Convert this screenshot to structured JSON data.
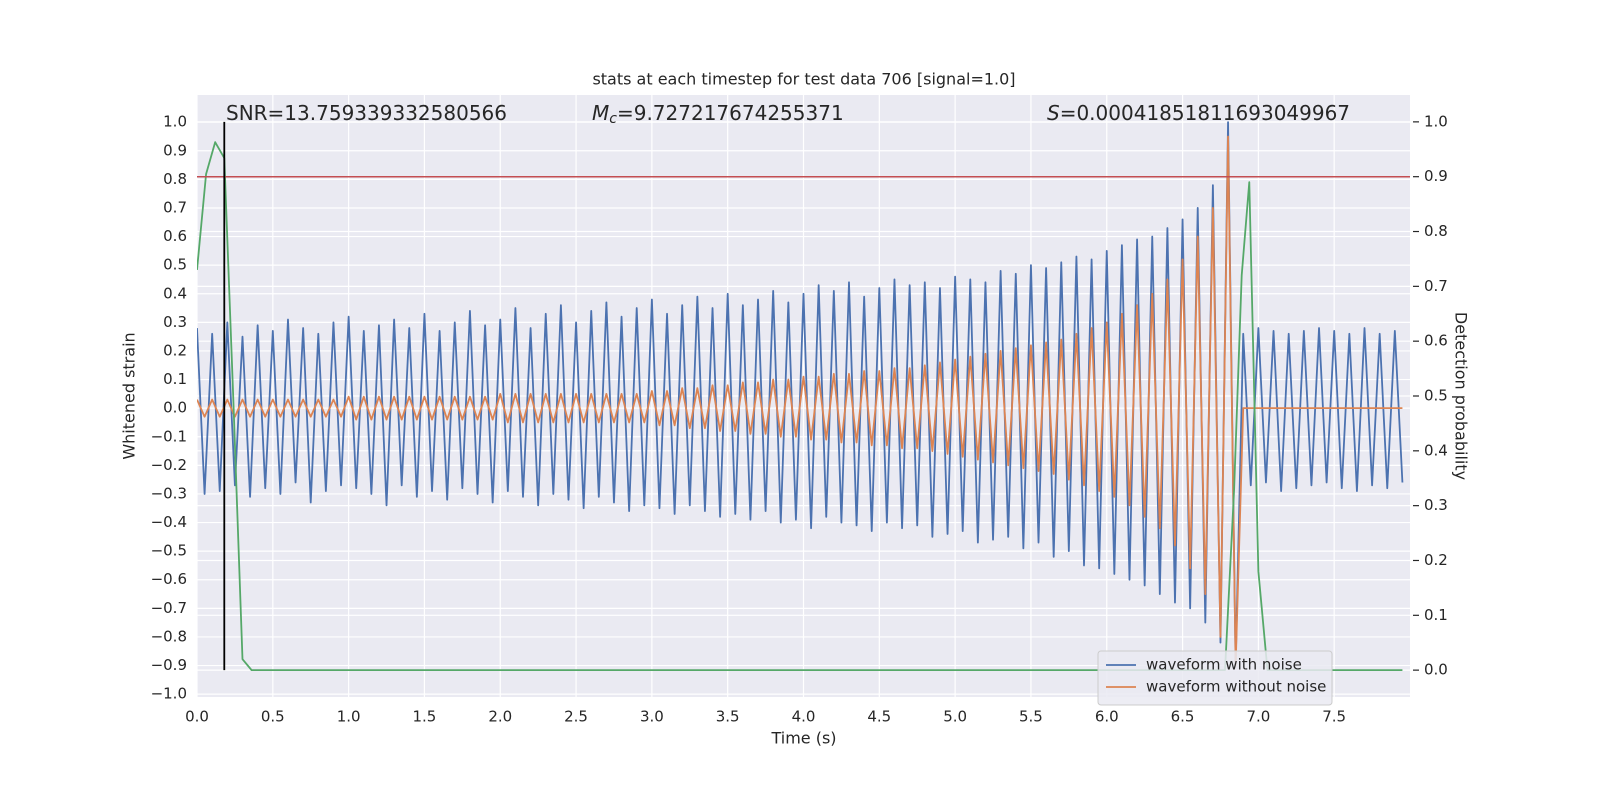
{
  "chart_data": {
    "type": "line",
    "title": "stats at each timestep for test data 706 [signal=1.0]",
    "x_label": "Time (s)",
    "y_label": "Whitened strain",
    "y2_label": "Detection probability",
    "xlim": [
      0,
      8.0
    ],
    "ylim": [
      -1.01,
      1.095
    ],
    "y2lim": [
      -0.049,
      1.049
    ],
    "grid": true,
    "legend": "lower right",
    "xticks": [
      {
        "value": 0,
        "label": "0.0"
      },
      0.5,
      {
        "value": 1,
        "label": "1.0"
      },
      1.5,
      {
        "value": 2,
        "label": "2.0"
      },
      2.5,
      {
        "value": 3,
        "label": "3.0"
      },
      3.5,
      {
        "value": 4,
        "label": "4.0"
      },
      4.5,
      {
        "value": 5,
        "label": "5.0"
      },
      5.5,
      {
        "value": 6,
        "label": "6.0"
      },
      6.5,
      {
        "value": 7,
        "label": "7.0"
      },
      7.5
    ],
    "yticks": [
      {
        "value": -1,
        "label": "−1.0"
      },
      {
        "value": -0.9,
        "label": "−0.9"
      },
      {
        "value": -0.8,
        "label": "−0.8"
      },
      {
        "value": -0.7,
        "label": "−0.7"
      },
      {
        "value": -0.6,
        "label": "−0.6"
      },
      {
        "value": -0.5,
        "label": "−0.5"
      },
      {
        "value": -0.4,
        "label": "−0.4"
      },
      {
        "value": -0.3,
        "label": "−0.3"
      },
      {
        "value": -0.2,
        "label": "−0.2"
      },
      {
        "value": -0.1,
        "label": "−0.1"
      },
      {
        "value": 0,
        "label": "0.0"
      },
      0.1,
      0.2,
      0.3,
      0.4,
      0.5,
      0.6,
      0.7,
      0.8,
      0.9,
      {
        "value": 1,
        "label": "1.0"
      }
    ],
    "y2ticks": [
      {
        "value": 0,
        "label": "0.0"
      },
      0.1,
      0.2,
      0.3,
      0.4,
      0.5,
      0.6,
      0.7,
      0.8,
      0.9,
      {
        "value": 1,
        "label": "1.0"
      }
    ],
    "annotations": [
      {
        "text": "SNR=13.759339332580566"
      },
      {
        "symbol": "M",
        "subscript": "c",
        "text": "=9.727217674255371"
      },
      {
        "symbol": "S",
        "text": "=0.00041851811693049967"
      }
    ],
    "x": [
      0,
      0.05,
      0.1,
      0.15,
      0.2,
      0.25,
      0.3,
      0.35,
      0.4,
      0.45,
      0.5,
      0.55,
      0.6,
      0.65,
      0.7,
      0.75,
      0.8,
      0.85,
      0.9,
      0.95,
      1,
      1.05,
      1.1,
      1.15,
      1.2,
      1.25,
      1.3,
      1.35,
      1.4,
      1.45,
      1.5,
      1.55,
      1.6,
      1.65,
      1.7,
      1.75,
      1.8,
      1.85,
      1.9,
      1.95,
      2,
      2.05,
      2.1,
      2.15,
      2.2,
      2.25,
      2.3,
      2.35,
      2.4,
      2.45,
      2.5,
      2.55,
      2.6,
      2.65,
      2.7,
      2.75,
      2.8,
      2.85,
      2.9,
      2.95,
      3,
      3.05,
      3.1,
      3.15,
      3.2,
      3.25,
      3.3,
      3.35,
      3.4,
      3.45,
      3.5,
      3.55,
      3.6,
      3.65,
      3.7,
      3.75,
      3.8,
      3.85,
      3.9,
      3.95,
      4,
      4.05,
      4.1,
      4.15,
      4.2,
      4.25,
      4.3,
      4.35,
      4.4,
      4.45,
      4.5,
      4.55,
      4.6,
      4.65,
      4.7,
      4.75,
      4.8,
      4.85,
      4.9,
      4.95,
      5,
      5.05,
      5.1,
      5.15,
      5.2,
      5.25,
      5.3,
      5.35,
      5.4,
      5.45,
      5.5,
      5.55,
      5.6,
      5.65,
      5.7,
      5.75,
      5.8,
      5.85,
      5.9,
      5.95,
      6,
      6.05,
      6.1,
      6.15,
      6.2,
      6.25,
      6.3,
      6.35,
      6.4,
      6.45,
      6.5,
      6.55,
      6.6,
      6.65,
      6.7,
      6.75,
      6.8,
      6.85,
      6.9,
      6.95,
      7,
      7.05,
      7.1,
      7.15,
      7.2,
      7.25,
      7.3,
      7.35,
      7.4,
      7.45,
      7.5,
      7.55,
      7.6,
      7.65,
      7.7,
      7.75,
      7.8,
      7.85,
      7.9,
      7.95
    ],
    "series": [
      {
        "name": "waveform with noise",
        "color": "#4c72b0",
        "values": [
          0.28,
          -0.3,
          0.26,
          -0.29,
          0.3,
          -0.27,
          0.25,
          -0.31,
          0.29,
          -0.28,
          0.27,
          -0.3,
          0.31,
          -0.26,
          0.28,
          -0.33,
          0.26,
          -0.29,
          0.3,
          -0.27,
          0.32,
          -0.28,
          0.27,
          -0.3,
          0.29,
          -0.34,
          0.31,
          -0.27,
          0.28,
          -0.31,
          0.33,
          -0.29,
          0.27,
          -0.32,
          0.3,
          -0.28,
          0.34,
          -0.3,
          0.29,
          -0.33,
          0.31,
          -0.29,
          0.35,
          -0.31,
          0.28,
          -0.34,
          0.33,
          -0.3,
          0.36,
          -0.32,
          0.3,
          -0.35,
          0.34,
          -0.31,
          0.37,
          -0.33,
          0.32,
          -0.36,
          0.35,
          -0.34,
          0.38,
          -0.35,
          0.33,
          -0.37,
          0.36,
          -0.34,
          0.39,
          -0.36,
          0.35,
          -0.38,
          0.4,
          -0.37,
          0.36,
          -0.39,
          0.38,
          -0.36,
          0.41,
          -0.4,
          0.37,
          -0.39,
          0.4,
          -0.42,
          0.43,
          -0.38,
          0.41,
          -0.4,
          0.44,
          -0.41,
          0.39,
          -0.43,
          0.42,
          -0.4,
          0.45,
          -0.42,
          0.43,
          -0.41,
          0.44,
          -0.45,
          0.42,
          -0.44,
          0.46,
          -0.43,
          0.45,
          -0.47,
          0.44,
          -0.46,
          0.48,
          -0.45,
          0.47,
          -0.49,
          0.5,
          -0.47,
          0.49,
          -0.52,
          0.51,
          -0.5,
          0.53,
          -0.55,
          0.52,
          -0.56,
          0.55,
          -0.58,
          0.57,
          -0.6,
          0.59,
          -0.62,
          0.6,
          -0.65,
          0.63,
          -0.68,
          0.66,
          -0.7,
          0.7,
          -0.75,
          0.78,
          -0.82,
          1.0,
          -0.9,
          0.26,
          -0.27,
          0.28,
          -0.26,
          0.27,
          -0.29,
          0.26,
          -0.28,
          0.27,
          -0.27,
          0.28,
          -0.26,
          0.27,
          -0.28,
          0.26,
          -0.29,
          0.28,
          -0.27,
          0.26,
          -0.28,
          0.27,
          -0.26
        ]
      },
      {
        "name": "waveform without noise",
        "color": "#dd8452",
        "values": [
          0.03,
          -0.03,
          0.03,
          -0.03,
          0.03,
          -0.03,
          0.03,
          -0.03,
          0.03,
          -0.03,
          0.03,
          -0.03,
          0.03,
          -0.03,
          0.03,
          -0.03,
          0.03,
          -0.03,
          0.03,
          -0.03,
          0.04,
          -0.04,
          0.04,
          -0.04,
          0.04,
          -0.04,
          0.04,
          -0.04,
          0.04,
          -0.04,
          0.04,
          -0.04,
          0.04,
          -0.04,
          0.04,
          -0.04,
          0.04,
          -0.04,
          0.04,
          -0.04,
          0.05,
          -0.05,
          0.05,
          -0.05,
          0.05,
          -0.05,
          0.05,
          -0.05,
          0.05,
          -0.05,
          0.05,
          -0.05,
          0.05,
          -0.05,
          0.05,
          -0.05,
          0.05,
          -0.05,
          0.05,
          -0.05,
          0.06,
          -0.06,
          0.06,
          -0.06,
          0.07,
          -0.07,
          0.07,
          -0.07,
          0.08,
          -0.08,
          0.08,
          -0.08,
          0.09,
          -0.09,
          0.09,
          -0.09,
          0.1,
          -0.1,
          0.1,
          -0.1,
          0.11,
          -0.11,
          0.11,
          -0.11,
          0.12,
          -0.12,
          0.12,
          -0.12,
          0.13,
          -0.13,
          0.13,
          -0.13,
          0.14,
          -0.14,
          0.14,
          -0.14,
          0.15,
          -0.15,
          0.16,
          -0.16,
          0.17,
          -0.17,
          0.18,
          -0.18,
          0.19,
          -0.19,
          0.2,
          -0.2,
          0.21,
          -0.21,
          0.22,
          -0.22,
          0.23,
          -0.23,
          0.24,
          -0.25,
          0.26,
          -0.27,
          0.28,
          -0.29,
          0.3,
          -0.31,
          0.33,
          -0.34,
          0.36,
          -0.38,
          0.4,
          -0.42,
          0.45,
          -0.48,
          0.52,
          -0.56,
          0.6,
          -0.65,
          0.7,
          -0.8,
          0.95,
          -0.9,
          0,
          0,
          0,
          0,
          0,
          0,
          0,
          0,
          0,
          0,
          0,
          0,
          0,
          0,
          0,
          0,
          0,
          0,
          0,
          0,
          0,
          0
        ]
      },
      {
        "color": "#55a868",
        "axis": "y2",
        "x": [
          0,
          0.06,
          0.12,
          0.18,
          0.24,
          0.3,
          0.36,
          6.78,
          6.84,
          6.89,
          6.94,
          7.0,
          7.06,
          7.95
        ],
        "values": [
          0.73,
          0.905,
          0.963,
          0.934,
          0.49,
          0.02,
          0,
          0,
          0.33,
          0.72,
          0.89,
          0.18,
          0,
          0
        ]
      }
    ],
    "hlines": [
      {
        "y": 0.9,
        "axis": "y2",
        "color": "#c44e52"
      }
    ],
    "vlines": [
      {
        "x": 0.18,
        "ymin": 0,
        "ymax": 1,
        "axis": "y2",
        "color": "#000000"
      }
    ]
  }
}
